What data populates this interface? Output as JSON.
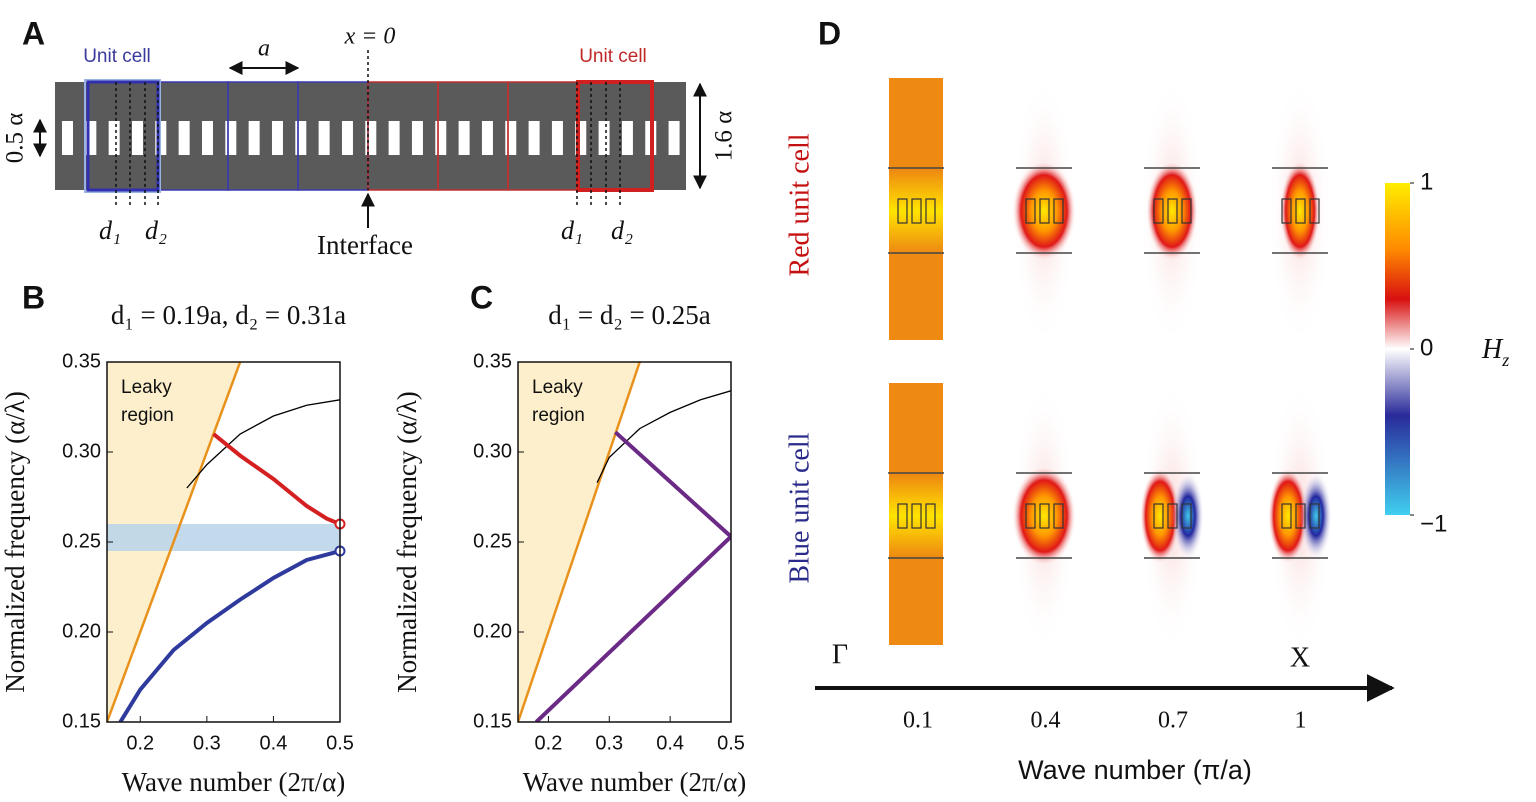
{
  "figure": {
    "panel_a": {
      "letter": "A",
      "unit_cell_blue": "Unit cell",
      "unit_cell_red": "Unit cell",
      "period": "a",
      "origin": "x = 0",
      "hole_height": "0.5 α",
      "width": "1.6 α",
      "d1_left": "d₁",
      "d2_left": "d₂",
      "d1_right": "d₁",
      "d2_right": "d₂",
      "interface": "Interface"
    },
    "panel_b_letter": "B",
    "panel_c_letter": "C",
    "panel_d": {
      "letter": "D",
      "row_labels": [
        "Red unit cell",
        "Blue unit cell"
      ],
      "start": "Γ",
      "end": "X",
      "categories": [
        0.1,
        0.4,
        0.7,
        1
      ],
      "xlabel": "Wave number (π/a)",
      "colorbar": {
        "symbol": "H",
        "subscript": "z",
        "lim": [
          -1,
          1
        ],
        "ticks": [
          1,
          0,
          {
            "value": -1,
            "label": "−1"
          }
        ]
      }
    }
  },
  "chart_data": [
    {
      "type": "line",
      "title": "d₁ = 0.19a, d₂ = 0.31a",
      "xlabel": "Wave number (2π/α)",
      "ylabel": "Normalized frequency (α/λ)",
      "annotation": [
        "Leaky",
        "region"
      ],
      "xlim": [
        0.15,
        0.5
      ],
      "ylim": [
        0.15,
        0.35
      ],
      "xticks": [
        0.2,
        0.3,
        0.4,
        0.5
      ],
      "yticks": [
        0.15,
        {
          "value": 0.2,
          "label": "0.20"
        },
        0.25,
        {
          "value": 0.3,
          "label": "0.30"
        },
        0.35
      ],
      "light_line": {
        "color": "#e8921c",
        "fill": "#fdefcc",
        "x": [
          0.15,
          0.35
        ],
        "values": [
          0.15,
          0.35
        ]
      },
      "band": {
        "color": "#b9d3ea",
        "range": [
          0.245,
          0.26
        ]
      },
      "series": [
        {
          "color": "#000000",
          "x": [
            0.27,
            0.3,
            0.35,
            0.4,
            0.45,
            0.5
          ],
          "values": [
            0.28,
            0.293,
            0.31,
            0.32,
            0.326,
            0.329
          ]
        },
        {
          "color": "#d42020",
          "end_marker": true,
          "x": [
            0.31,
            0.35,
            0.4,
            0.45,
            0.48,
            0.5
          ],
          "values": [
            0.31,
            0.298,
            0.285,
            0.27,
            0.263,
            0.26
          ]
        },
        {
          "color": "#2e3a9c",
          "end_marker": true,
          "x": [
            0.17,
            0.2,
            0.25,
            0.3,
            0.35,
            0.4,
            0.45,
            0.5
          ],
          "values": [
            0.15,
            0.168,
            0.19,
            0.205,
            0.218,
            0.23,
            0.24,
            0.245
          ]
        }
      ]
    },
    {
      "type": "line",
      "title": "d₁ = d₂ = 0.25a",
      "xlabel": "Wave number (2π/α)",
      "ylabel": "Normalized frequency (α/λ)",
      "annotation": [
        "Leaky",
        "region"
      ],
      "xlim": [
        0.15,
        0.5
      ],
      "ylim": [
        0.15,
        0.35
      ],
      "xticks": [
        0.2,
        0.3,
        0.4,
        0.5
      ],
      "yticks": [
        0.15,
        {
          "value": 0.2,
          "label": "0.20"
        },
        0.25,
        {
          "value": 0.3,
          "label": "0.30"
        },
        0.35
      ],
      "light_line": {
        "color": "#e8921c",
        "fill": "#fdefcc",
        "x": [
          0.15,
          0.35
        ],
        "values": [
          0.15,
          0.35
        ]
      },
      "series": [
        {
          "color": "#000000",
          "x": [
            0.28,
            0.3,
            0.35,
            0.4,
            0.45,
            0.5
          ],
          "values": [
            0.283,
            0.297,
            0.313,
            0.322,
            0.329,
            0.334
          ]
        },
        {
          "color": "#6a2a86",
          "x": [
            0.31,
            0.5
          ],
          "values": [
            0.311,
            0.253
          ]
        },
        {
          "color": "#6a2a86",
          "x": [
            0.18,
            0.5
          ],
          "values": [
            0.15,
            0.253
          ]
        }
      ]
    }
  ]
}
